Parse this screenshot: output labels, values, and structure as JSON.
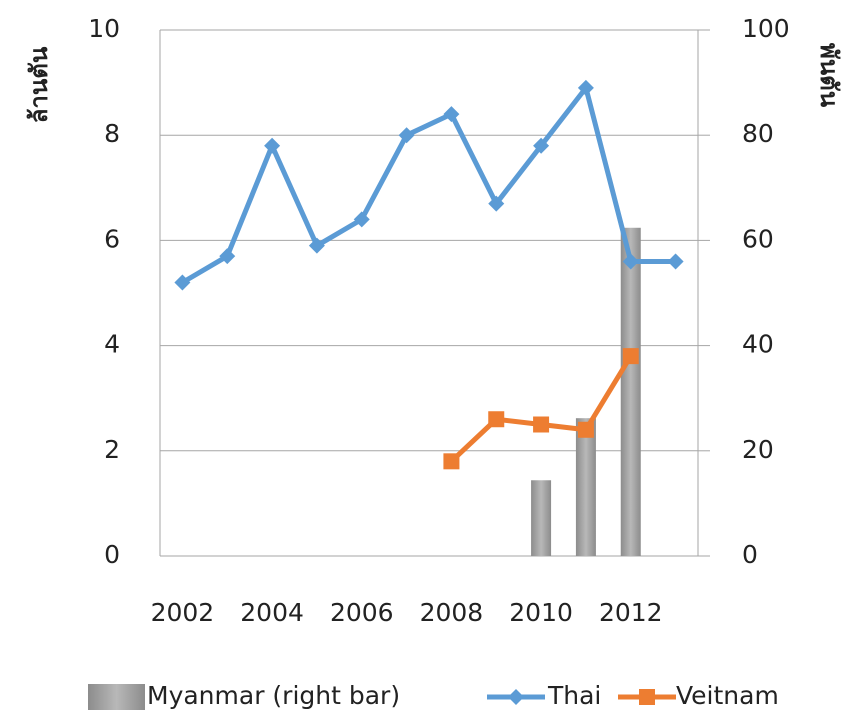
{
  "chart_data": {
    "type": "line",
    "ylabel": "ล้านตัน",
    "y2label": "พันตัน",
    "categories": [
      "2002",
      null,
      "2004",
      null,
      "2006",
      null,
      "2008",
      null,
      "2010",
      null,
      "2012",
      null
    ],
    "series": [
      {
        "name": "Myanmar (right bar)",
        "type": "bar",
        "axis": "y2",
        "color": "#a6a6a6",
        "values": [
          null,
          null,
          null,
          null,
          null,
          null,
          null,
          null,
          14.4,
          26.2,
          62.4,
          null
        ]
      },
      {
        "name": "Thai",
        "color": "#5b9bd5",
        "marker": "diamond",
        "values": [
          5.2,
          5.7,
          7.8,
          5.9,
          6.4,
          8.0,
          8.4,
          6.7,
          7.8,
          8.9,
          5.6,
          5.6
        ]
      },
      {
        "name": "Veitnam",
        "color": "#ed7d31",
        "marker": "square",
        "values": [
          null,
          null,
          null,
          null,
          null,
          null,
          1.8,
          2.6,
          2.5,
          2.4,
          3.8,
          null
        ]
      }
    ],
    "ylim": [
      0,
      10
    ],
    "yticks": [
      0,
      2,
      4,
      6,
      8,
      10
    ],
    "y2lim": [
      0,
      100
    ],
    "y2ticks": [
      0,
      20,
      40,
      60,
      80,
      100
    ],
    "grid": true,
    "legend": "bottom"
  }
}
